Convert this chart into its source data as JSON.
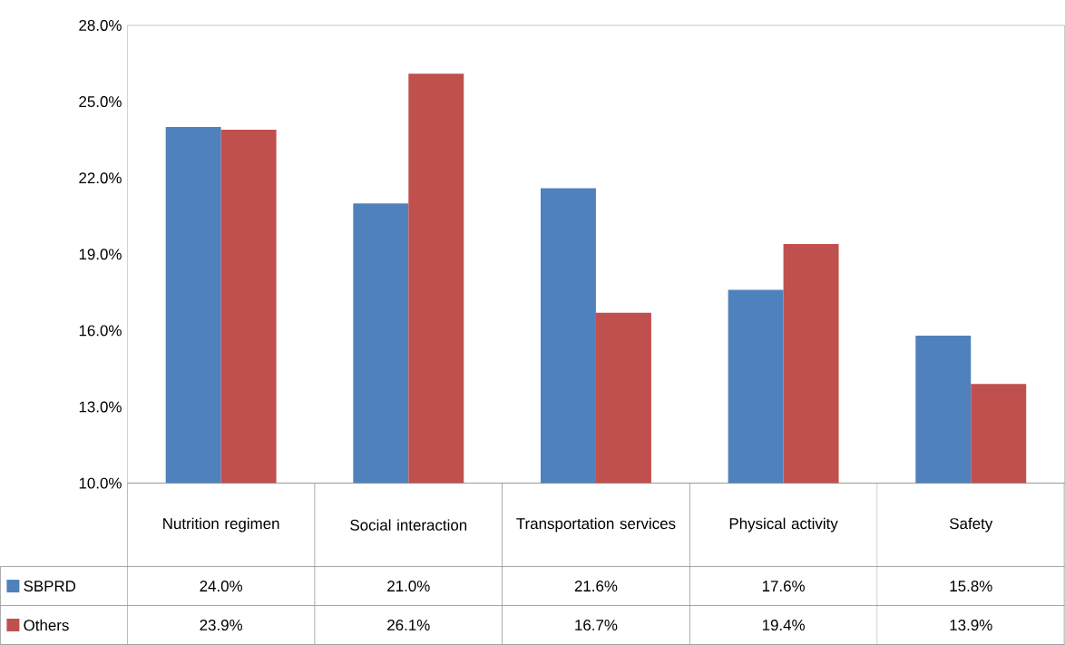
{
  "chart_data": {
    "type": "bar",
    "categories": [
      "Nutrition regimen",
      "Social interaction",
      "Transportation services",
      "Physical activity",
      "Safety"
    ],
    "series": [
      {
        "name": "SBPRD",
        "color": "#4f81bd",
        "values": [
          24.0,
          21.0,
          21.6,
          17.6,
          15.8
        ],
        "value_labels": [
          "24.0%",
          "21.0%",
          "21.6%",
          "17.6%",
          "15.8%"
        ]
      },
      {
        "name": "Others",
        "color": "#c0504d",
        "values": [
          23.9,
          26.1,
          16.7,
          19.4,
          13.9
        ],
        "value_labels": [
          "23.9%",
          "26.1%",
          "16.7%",
          "19.4%",
          "13.9%"
        ]
      }
    ],
    "ylim": [
      10,
      28
    ],
    "yticks": [
      {
        "value": 10,
        "label": "10.0%"
      },
      {
        "value": 13,
        "label": "13.0%"
      },
      {
        "value": 16,
        "label": "16.0%"
      },
      {
        "value": 19,
        "label": "19.0%"
      },
      {
        "value": 22,
        "label": "22.0%"
      },
      {
        "value": 25,
        "label": "25.0%"
      },
      {
        "value": 28,
        "label": "28.0%"
      }
    ],
    "legend": "bottom"
  }
}
